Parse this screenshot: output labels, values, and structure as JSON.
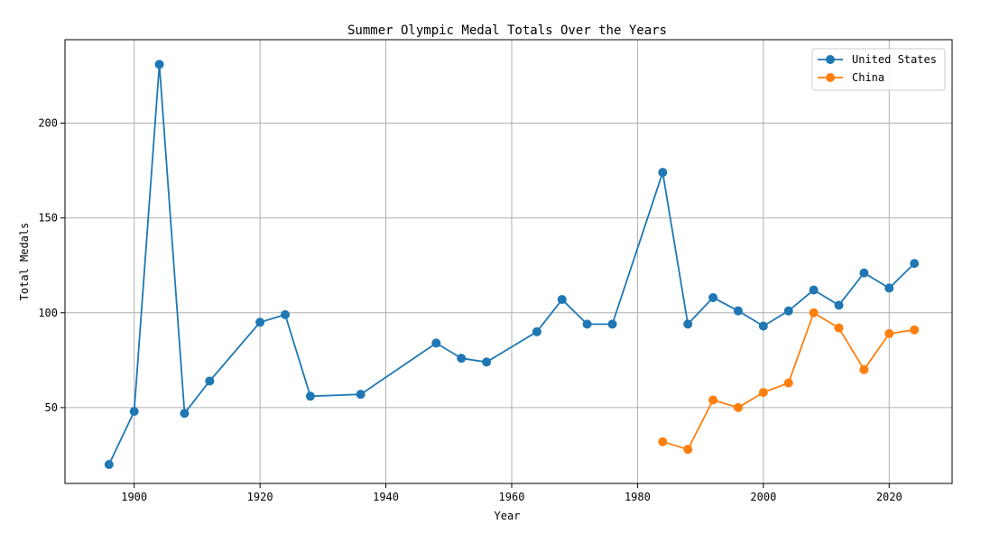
{
  "chart_data": {
    "type": "line",
    "title": "Summer Olympic Medal Totals Over the Years",
    "xlabel": "Year",
    "ylabel": "Total Medals",
    "xlim": [
      1889,
      2030
    ],
    "ylim": [
      10,
      244
    ],
    "xticks": [
      1900,
      1920,
      1940,
      1960,
      1980,
      2000,
      2020
    ],
    "yticks": [
      50,
      100,
      150,
      200
    ],
    "grid": true,
    "legend_position": "top-right",
    "series": [
      {
        "name": "United States",
        "color": "#1f77b4",
        "marker": "circle",
        "x": [
          1896,
          1900,
          1904,
          1908,
          1912,
          1920,
          1924,
          1928,
          1936,
          1948,
          1952,
          1956,
          1964,
          1968,
          1972,
          1976,
          1984,
          1988,
          1992,
          1996,
          2000,
          2004,
          2008,
          2012,
          2016,
          2020,
          2024
        ],
        "values": [
          20,
          48,
          231,
          47,
          64,
          95,
          99,
          56,
          57,
          84,
          76,
          74,
          90,
          107,
          94,
          94,
          174,
          94,
          108,
          101,
          93,
          101,
          112,
          104,
          121,
          113,
          126
        ]
      },
      {
        "name": "China",
        "color": "#ff7f0e",
        "marker": "circle",
        "x": [
          1984,
          1988,
          1992,
          1996,
          2000,
          2004,
          2008,
          2012,
          2016,
          2020,
          2024
        ],
        "values": [
          32,
          28,
          54,
          50,
          58,
          63,
          100,
          92,
          70,
          89,
          91
        ]
      }
    ]
  }
}
